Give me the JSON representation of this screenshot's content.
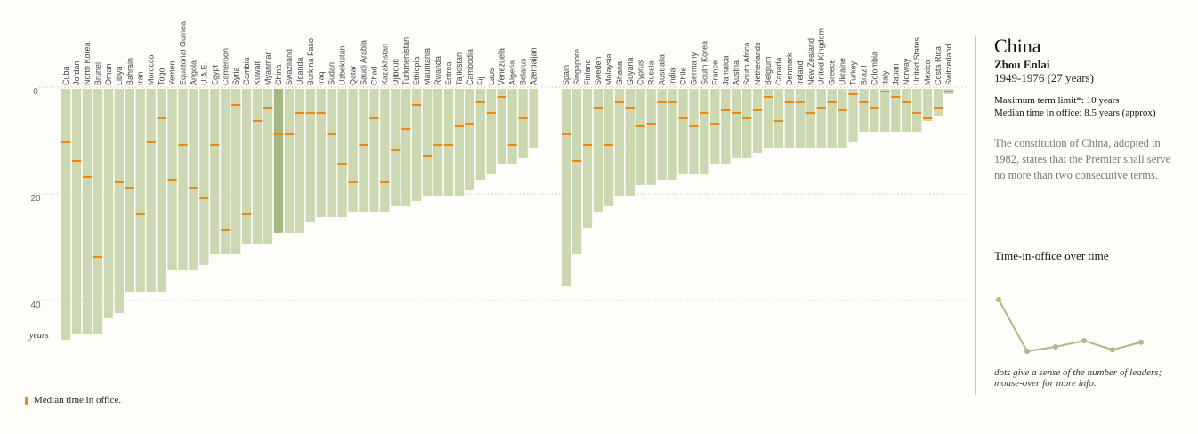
{
  "chart_data": {
    "type": "bar",
    "unit": "years",
    "y_ticks": [
      0,
      20,
      40
    ],
    "ylim": [
      0,
      47
    ],
    "grid": true,
    "selected": "China",
    "groups": [
      {
        "categories": [
          "Cuba",
          "Jordan",
          "North Korea",
          "Brunei",
          "Oman",
          "Libya",
          "Bahrain",
          "Iran",
          "Morocco",
          "Togo",
          "Yemen",
          "Equatorial Guinea",
          "Angola",
          "U.A.E.",
          "Egypt",
          "Cameroon",
          "Syria",
          "Gambia",
          "Kuwait",
          "Myanmar",
          "China",
          "Swaziland",
          "Uganda",
          "Burkina Faso",
          "Iraq",
          "Sudan",
          "Uzbekistan",
          "Qatar",
          "Saudi Arabia",
          "Chad",
          "Kazakhstan",
          "Djibouti",
          "Turkmenistan",
          "Ethiopia",
          "Mauritania",
          "Rwanda",
          "Eritrea",
          "Tajikistan",
          "Cambodia",
          "Fiji",
          "Laos",
          "Venezuela",
          "Algeria",
          "Belarus",
          "Azerbaijan"
        ],
        "values": [
          47,
          46,
          46,
          46,
          43,
          42,
          38,
          38,
          38,
          38,
          34,
          34,
          34,
          33,
          31,
          31,
          31,
          29,
          29,
          29,
          27,
          27,
          27,
          25,
          24,
          24,
          24,
          23,
          23,
          23,
          23,
          22,
          22,
          21,
          20,
          20,
          20,
          20,
          19,
          17,
          16,
          14,
          14,
          13,
          11
        ],
        "medians": [
          10,
          13.5,
          16.5,
          31.5,
          null,
          17.5,
          18.5,
          23.5,
          10,
          5.5,
          17,
          10.5,
          18.5,
          20.5,
          10.5,
          26.5,
          3,
          23.5,
          6,
          3.5,
          8.5,
          8.5,
          4.5,
          4.5,
          4.5,
          8.5,
          14,
          17.5,
          10.5,
          5.5,
          17.5,
          11.5,
          7.5,
          3,
          12.5,
          10.5,
          10.5,
          7,
          6.5,
          2.5,
          4.5,
          1.5,
          10.5,
          5.5,
          null
        ]
      },
      {
        "categories": [
          "Spain",
          "Singapore",
          "Finland",
          "Sweden",
          "Malaysia",
          "Ghana",
          "Guyana",
          "Cyprus",
          "Russia",
          "Australia",
          "India",
          "Chile",
          "Germany",
          "South Korea",
          "France",
          "Jamaica",
          "Austria",
          "South Africa",
          "Netherlands",
          "Belgium",
          "Canada",
          "Denmark",
          "Ireland",
          "New Zealand",
          "United Kingdom",
          "Greece",
          "Ukraine",
          "Turkey",
          "Brazil",
          "Colombia",
          "Italy",
          "Japan",
          "Norway",
          "United States",
          "Mexico",
          "Costa Rica",
          "Switzerland"
        ],
        "values": [
          37,
          31,
          26,
          23,
          22,
          20,
          20,
          18,
          18,
          17,
          17,
          16,
          16,
          16,
          14,
          14,
          13,
          13,
          12,
          11,
          11,
          11,
          11,
          11,
          11,
          11,
          11,
          10,
          8,
          8,
          8,
          8,
          8,
          8,
          6,
          5,
          1
        ],
        "medians": [
          8.5,
          13.5,
          10.5,
          3.5,
          10.5,
          2.5,
          3.5,
          7,
          6.5,
          2.5,
          2.5,
          5.5,
          7,
          4.5,
          6.5,
          4,
          4.5,
          5.5,
          4,
          1.5,
          6,
          2.5,
          2.5,
          4.5,
          3.5,
          2.5,
          4,
          1,
          2.5,
          3.5,
          0.5,
          1.5,
          2.5,
          4.5,
          5.5,
          3.5,
          0.5
        ]
      }
    ]
  },
  "unit_label": "years",
  "legend": {
    "label": "Median time in office."
  },
  "detail": {
    "country": "China",
    "leader": "Zhou Enlai",
    "period": "1949-1976 (27 years)",
    "term_limit": "Maximum term limit*: 10 years",
    "median": "Median time in office: 8.5 years (approx)",
    "note": "The constitution of China, adopted in 1982, states that the Premier shall serve no more than two consecutive terms.",
    "subhead": "Time-in-office over time",
    "sparkline": [
      27,
      10,
      11.5,
      13.5,
      10.5,
      13
    ],
    "caption": "dots give a sense of the number of leaders; mouse-over for more info."
  },
  "colors": {
    "bar": "#ccd8b2",
    "bar_selected": "#a4b884",
    "median": "#e8891c",
    "grid": "#c8c8c0",
    "spark": "#a9bc84"
  }
}
